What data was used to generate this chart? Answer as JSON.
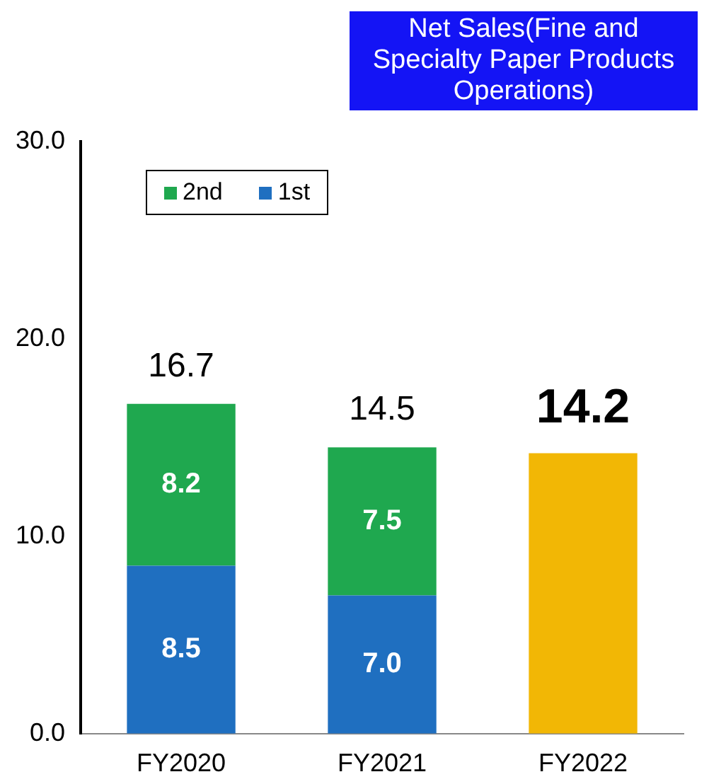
{
  "chart_data": {
    "type": "bar",
    "title": "Net Sales(Fine and Specialty Paper Products Operations)",
    "categories": [
      "FY2020",
      "FY2021",
      "FY2022"
    ],
    "stacked": true,
    "series": [
      {
        "name": "1st",
        "color": "#1f6fc0",
        "values": [
          8.5,
          7.0,
          null
        ],
        "value_labels": [
          "8.5",
          "7.0",
          null
        ]
      },
      {
        "name": "2nd",
        "color": "#1fa84f",
        "values": [
          8.2,
          7.5,
          null
        ],
        "value_labels": [
          "8.2",
          "7.5",
          null
        ]
      },
      {
        "color": "#f2b705",
        "values": [
          null,
          null,
          14.2
        ]
      }
    ],
    "totals": [
      "16.7",
      "14.5",
      "14.2"
    ],
    "ylim": [
      0,
      30
    ],
    "yticks": [
      {
        "value": 0,
        "label": "0.0"
      },
      {
        "value": 10,
        "label": "10.0"
      },
      {
        "value": 20,
        "label": "20.0"
      },
      {
        "value": 30,
        "label": "30.0"
      }
    ],
    "grid": false,
    "legend": "top left"
  }
}
